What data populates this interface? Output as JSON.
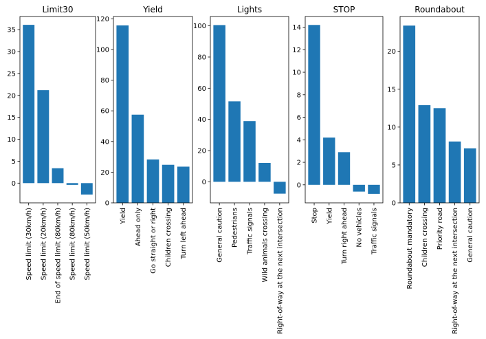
{
  "chart_data": [
    {
      "type": "bar",
      "title": "Limit30",
      "categories": [
        "Speed limit (30km/h)",
        "Speed limit (20km/h)",
        "End of speed limit (80km/h)",
        "Speed limit (80km/h)",
        "Speed limit (50km/h)"
      ],
      "values": [
        36.1,
        21.2,
        3.4,
        -0.4,
        -2.6
      ],
      "ylim": [
        -4.5,
        38.0
      ],
      "yticks": [
        0,
        5,
        10,
        15,
        20,
        25,
        30,
        35
      ],
      "bar_color": "#1f77b4"
    },
    {
      "type": "bar",
      "title": "Yield",
      "categories": [
        "Yield",
        "Ahead only",
        "Go straight or right",
        "Children crossing",
        "Turn left ahead"
      ],
      "values": [
        115.7,
        57.5,
        28.3,
        24.8,
        23.6
      ],
      "ylim": [
        0,
        121.5
      ],
      "yticks": [
        0,
        20,
        40,
        60,
        80,
        100,
        120
      ],
      "bar_color": "#1f77b4"
    },
    {
      "type": "bar",
      "title": "Lights",
      "categories": [
        "General caution",
        "Pedestrians",
        "Traffic signals",
        "Wild animals crossing",
        "Right-of-way at the next intersection"
      ],
      "values": [
        100.5,
        51.6,
        38.9,
        12.1,
        -7.6
      ],
      "ylim": [
        -13.5,
        106.0
      ],
      "yticks": [
        0,
        20,
        40,
        60,
        80,
        100
      ],
      "bar_color": "#1f77b4"
    },
    {
      "type": "bar",
      "title": "STOP",
      "categories": [
        "Stop",
        "Yield",
        "Turn right ahead",
        "No vehicles",
        "Traffic signals"
      ],
      "values": [
        14.2,
        4.2,
        2.9,
        -0.6,
        -0.8
      ],
      "ylim": [
        -1.6,
        14.95
      ],
      "yticks": [
        0,
        2,
        4,
        6,
        8,
        10,
        12,
        14
      ],
      "bar_color": "#1f77b4"
    },
    {
      "type": "bar",
      "title": "Roundabout",
      "categories": [
        "Roundabout mandatory",
        "Children crossing",
        "Priority road",
        "Right-of-way at the next intersection",
        "General caution"
      ],
      "values": [
        23.4,
        12.9,
        12.5,
        8.1,
        7.2
      ],
      "ylim": [
        0,
        24.6
      ],
      "yticks": [
        0,
        5,
        10,
        15,
        20
      ],
      "bar_color": "#1f77b4"
    }
  ]
}
